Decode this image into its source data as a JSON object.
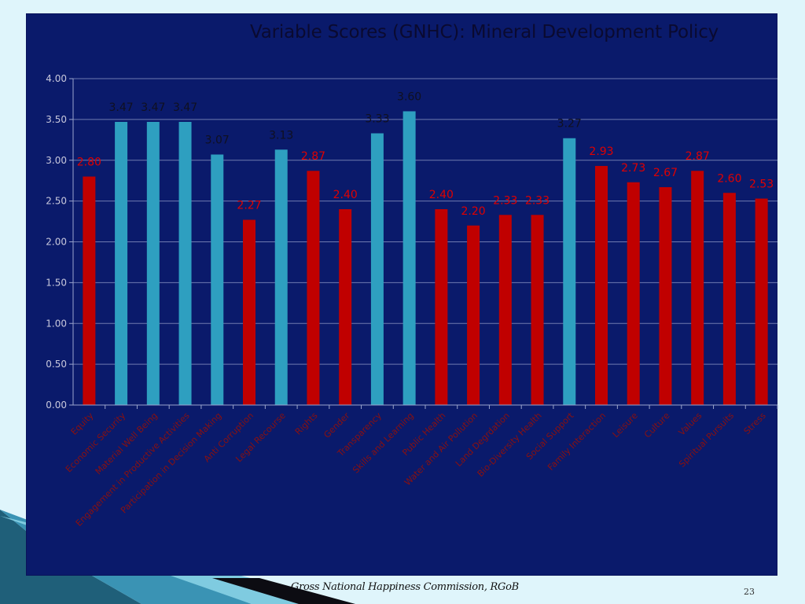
{
  "slide": {
    "footer": "Gross National Happiness Commission, RGoB",
    "page_number": "23"
  },
  "chart_data": {
    "type": "bar",
    "title": "Variable Scores (GNHC): Mineral Development Policy",
    "xlabel": "",
    "ylabel": "",
    "ylim": [
      0,
      4
    ],
    "yticks": [
      "0.00",
      "0.50",
      "1.00",
      "1.50",
      "2.00",
      "2.50",
      "3.00",
      "3.50",
      "4.00"
    ],
    "grid": true,
    "categories": [
      "Equity",
      "Economic Security",
      "Material Well Being",
      "Engagement in Productive Activities",
      "Participation in Decision Making",
      "Anti Corruption",
      "Legal Recourse",
      "Rights",
      "Gender",
      "Transparency",
      "Skills and Learning",
      "Public Health",
      "Water and Air Pollution",
      "Land Degrdation",
      "Bio-Diversity Health",
      "Social Support",
      "Family Interaction",
      "Leisure",
      "Culture",
      "Values",
      "Spiritual Pursuits",
      "Stress"
    ],
    "values": [
      2.8,
      3.47,
      3.47,
      3.47,
      3.07,
      2.27,
      3.13,
      2.87,
      2.4,
      3.33,
      3.6,
      2.4,
      2.2,
      2.33,
      2.33,
      3.27,
      2.93,
      2.73,
      2.67,
      2.87,
      2.6,
      2.53
    ],
    "data_labels": [
      "2.80",
      "3.47",
      "3.47",
      "3.47",
      "3.07",
      "2.27",
      "3.13",
      "2.87",
      "2.40",
      "3.33",
      "3.60",
      "2.40",
      "2.20",
      "2.33",
      "2.33",
      "3.27",
      "2.93",
      "2.73",
      "2.67",
      "2.87",
      "2.60",
      "2.53"
    ],
    "colors": {
      "below_threshold": "#c00000",
      "above_threshold": "#2e9fc0",
      "background": "#0a1a6b",
      "gridline": "#6f7ab0",
      "axis": "#9aa4cc",
      "tick_label": "#c8c8dc",
      "category_label": "#8a1010",
      "data_label_below": "#e00000",
      "data_label_above": "#101020"
    }
  }
}
